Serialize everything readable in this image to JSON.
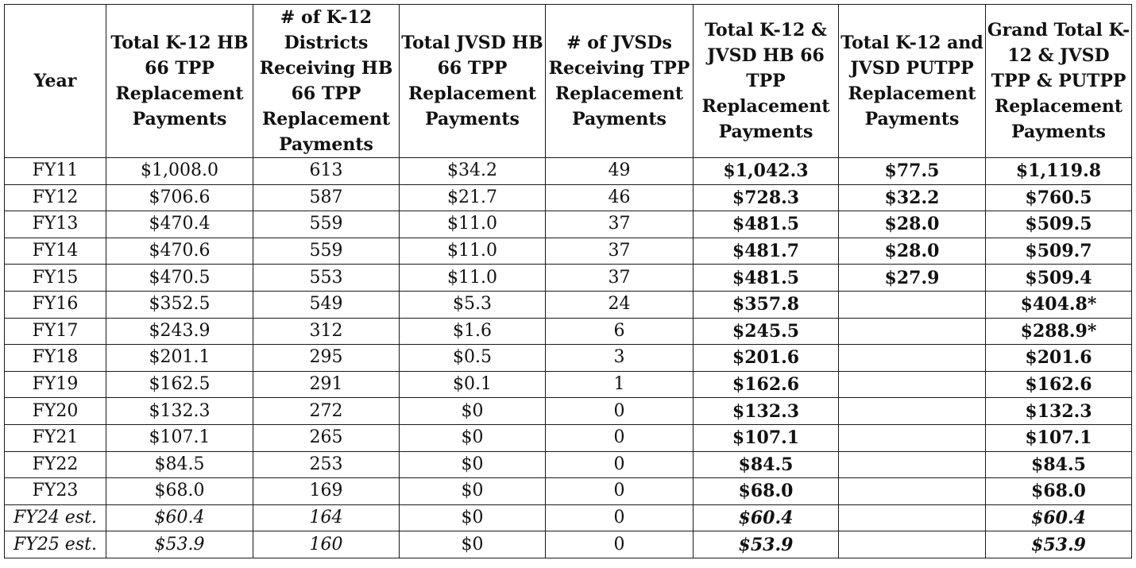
{
  "headers": [
    "Year",
    "Total K-12 HB 66 TPP Replacement Payments",
    "# of K-12 Districts Receiving HB 66 TPP Replacement Payments",
    "Total JVSD HB 66 TPP Replacement Payments",
    "# of JVSDs Receiving TPP Replacement Payments",
    "Total K-12 & JVSD HB 66 TPP Replacement Payments",
    "Total K-12 and JVSD PUTPP Replacement Payments",
    "Grand Total K-12 & JVSD TPP & PUTPP Replacement Payments"
  ],
  "rows": [
    [
      "FY11",
      "$1,008.0",
      "613",
      "$34.2",
      "49",
      "$1,042.3",
      "$77.5",
      "$1,119.8"
    ],
    [
      "FY12",
      "$706.6",
      "587",
      "$21.7",
      "46",
      "$728.3",
      "$32.2",
      "$760.5"
    ],
    [
      "FY13",
      "$470.4",
      "559",
      "$11.0",
      "37",
      "$481.5",
      "$28.0",
      "$509.5"
    ],
    [
      "FY14",
      "$470.6",
      "559",
      "$11.0",
      "37",
      "$481.7",
      "$28.0",
      "$509.7"
    ],
    [
      "FY15",
      "$470.5",
      "553",
      "$11.0",
      "37",
      "$481.5",
      "$27.9",
      "$509.4"
    ],
    [
      "FY16",
      "$352.5",
      "549",
      "$5.3",
      "24",
      "$357.8",
      "",
      "$404.8*"
    ],
    [
      "FY17",
      "$243.9",
      "312",
      "$1.6",
      "6",
      "$245.5",
      "",
      "$288.9*"
    ],
    [
      "FY18",
      "$201.1",
      "295",
      "$0.5",
      "3",
      "$201.6",
      "",
      "$201.6"
    ],
    [
      "FY19",
      "$162.5",
      "291",
      "$0.1",
      "1",
      "$162.6",
      "",
      "$162.6"
    ],
    [
      "FY20",
      "$132.3",
      "272",
      "$0",
      "0",
      "$132.3",
      "",
      "$132.3"
    ],
    [
      "FY21",
      "$107.1",
      "265",
      "$0",
      "0",
      "$107.1",
      "",
      "$107.1"
    ],
    [
      "FY22",
      "$84.5",
      "253",
      "$0",
      "0",
      "$84.5",
      "",
      "$84.5"
    ],
    [
      "FY23",
      "$68.0",
      "169",
      "$0",
      "0",
      "$68.0",
      "",
      "$68.0"
    ],
    [
      "FY24 est.",
      "$60.4",
      "164",
      "$0",
      "0",
      "$60.4",
      "",
      "$60.4"
    ],
    [
      "FY25 est.",
      "$53.9",
      "160",
      "$0",
      "0",
      "$53.9",
      "",
      "$53.9"
    ]
  ],
  "estimate_rows": [
    13,
    14
  ]
}
